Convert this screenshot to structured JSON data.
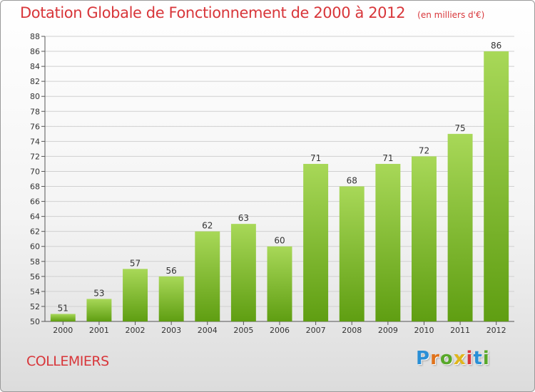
{
  "header": {
    "title": "Dotation Globale de Fonctionnement de 2000 à 2012",
    "subtitle": "(en milliers d'€)"
  },
  "footer": {
    "commune": "COLLEMIERS",
    "brand": {
      "letters": [
        "P",
        "r",
        "o",
        "x",
        "i",
        "t",
        "i"
      ],
      "colors": [
        "#2a8fd6",
        "#e0731c",
        "#58a82a",
        "#e0b51c",
        "#d8363a",
        "#2a8fd6",
        "#58a82a"
      ]
    }
  },
  "colors": {
    "bar_top": "#a8d858",
    "bar_bottom": "#5f9e12",
    "title": "#d8363a",
    "grid": "#d0d0d0"
  },
  "chart_data": {
    "type": "bar",
    "title": "Dotation Globale de Fonctionnement de 2000 à 2012",
    "subtitle": "(en milliers d'€)",
    "categories": [
      "2000",
      "2001",
      "2002",
      "2003",
      "2004",
      "2005",
      "2006",
      "2007",
      "2008",
      "2009",
      "2010",
      "2011",
      "2012"
    ],
    "values": [
      51,
      53,
      57,
      56,
      62,
      63,
      60,
      71,
      68,
      71,
      72,
      75,
      86
    ],
    "ylim": [
      50,
      88
    ],
    "yticks": [
      50,
      52,
      54,
      56,
      58,
      60,
      62,
      64,
      66,
      68,
      70,
      72,
      74,
      76,
      78,
      80,
      82,
      84,
      86,
      88
    ],
    "grid": true,
    "data_labels": true
  }
}
